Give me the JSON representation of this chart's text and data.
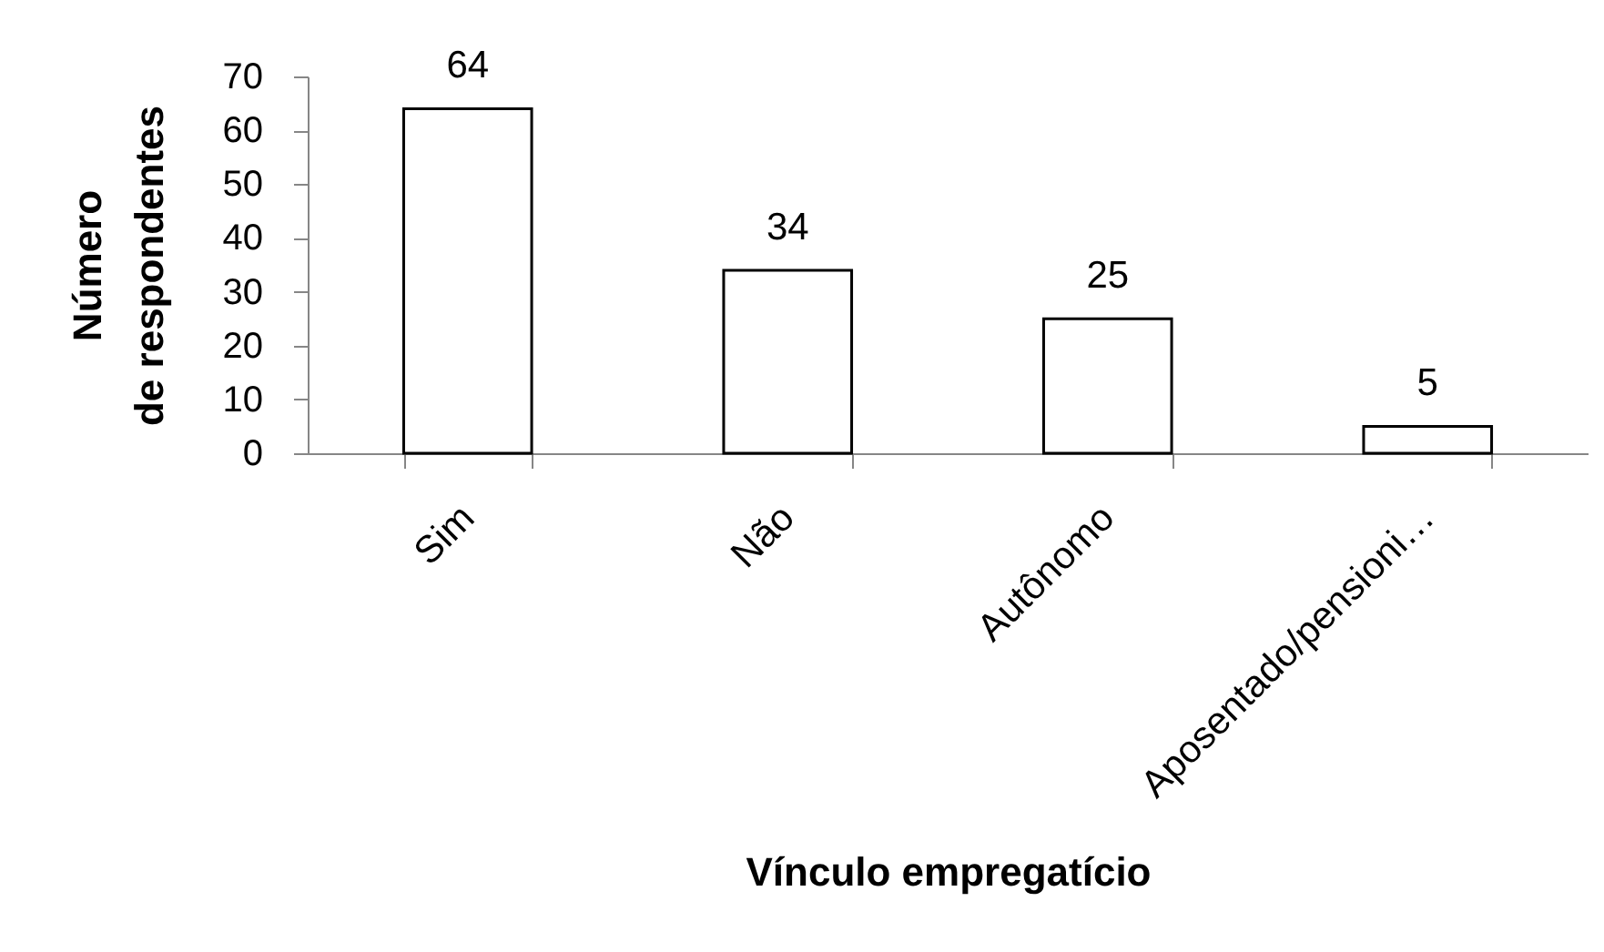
{
  "chart_data": {
    "type": "bar",
    "xlabel": "Vínculo empregatício",
    "ylabel": "Número de respondentes",
    "categories": [
      "Sim",
      "Não",
      "Autônomo",
      "Aposentado/pensioni…"
    ],
    "values": [
      64,
      34,
      25,
      5
    ],
    "color": "#ffffff",
    "ylim": [
      0,
      70
    ],
    "yticks": [
      0,
      10,
      20,
      30,
      40,
      50,
      60,
      70
    ],
    "data_labels": true
  }
}
